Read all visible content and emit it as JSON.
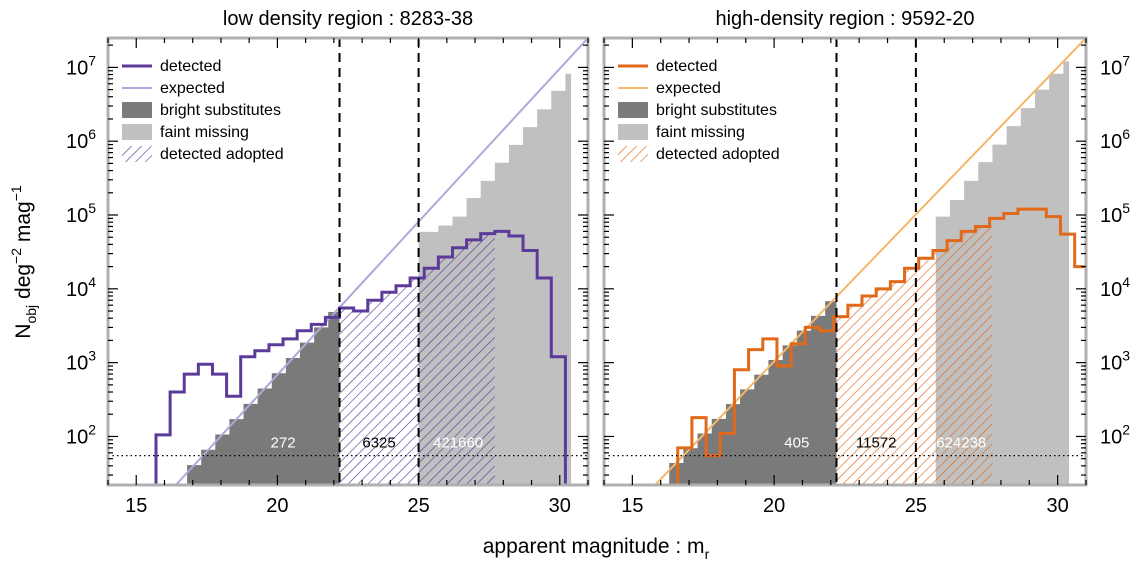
{
  "figure": {
    "ylabel": "N",
    "ylabel_sub": "obj",
    "ylabel_deg": "deg",
    "ylabel_deg_exp": "−2",
    "ylabel_mag": "mag",
    "ylabel_mag_exp": "−1",
    "xlabel": "apparent magnitude : m",
    "xlabel_sub": "r"
  },
  "legend": {
    "detected": "detected",
    "expected": "expected",
    "bright": "bright substitutes",
    "faint": "faint missing",
    "adopted": "detected adopted"
  },
  "colors": {
    "bright": "#7a7a7a",
    "faint": "#c0c0c0",
    "frame": "#b0b0b0"
  },
  "chart_data": [
    {
      "type": "histogram",
      "title": "low density region : 8283-38",
      "color": "#5b3a9a",
      "expected_color": "#b0a8d8",
      "xlim": [
        14,
        31
      ],
      "ylim": [
        22,
        25000000
      ],
      "yscale": "log",
      "xticks": [
        15,
        20,
        25,
        30
      ],
      "yticks": [
        {
          "exp": 2,
          "label": "10",
          "sup": "2"
        },
        {
          "exp": 3,
          "label": "10",
          "sup": "3"
        },
        {
          "exp": 4,
          "label": "10",
          "sup": "4"
        },
        {
          "exp": 5,
          "label": "10",
          "sup": "5"
        },
        {
          "exp": 6,
          "label": "10",
          "sup": "6"
        },
        {
          "exp": 7,
          "label": "10",
          "sup": "7"
        }
      ],
      "bin_width": 0.5,
      "detected_bins_start": 15.2,
      "detected": [
        20,
        105,
        400,
        700,
        950,
        700,
        350,
        1200,
        1450,
        1750,
        2100,
        2700,
        3300,
        4100,
        5500,
        5000,
        7000,
        9000,
        11000,
        14000,
        19000,
        27000,
        36000,
        46000,
        56000,
        60000,
        52000,
        33000,
        14000,
        1200,
        20
      ],
      "expected_line": [
        [
          16.4,
          22
        ],
        [
          31,
          25000000
        ]
      ],
      "bright_range": [
        16.8,
        22.2
      ],
      "faint_steps": [
        [
          25.0,
          59000
        ],
        [
          25.7,
          72000
        ],
        [
          26.2,
          95000
        ],
        [
          26.7,
          170000
        ],
        [
          27.2,
          290000
        ],
        [
          27.7,
          510000
        ],
        [
          28.2,
          890000
        ],
        [
          28.7,
          1550000
        ],
        [
          29.2,
          2700000
        ],
        [
          29.7,
          4800000
        ],
        [
          30.2,
          8200000
        ]
      ],
      "faint_end": 30.4,
      "adopted_range": [
        22.2,
        27.7
      ],
      "vlines": [
        22.2,
        25.0
      ],
      "hline": 55,
      "annotations": [
        {
          "x": 20.2,
          "label": "272",
          "color": "#ffffff"
        },
        {
          "x": 23.6,
          "label": "6325",
          "color": "#000000"
        },
        {
          "x": 26.4,
          "label": "421660",
          "color": "#ffffff"
        }
      ]
    },
    {
      "type": "histogram",
      "title": "high-density region : 9592-20",
      "color": "#e0691a",
      "expected_color": "#f5b669",
      "xlim": [
        14,
        31
      ],
      "ylim": [
        22,
        25000000
      ],
      "yscale": "log",
      "xticks": [
        15,
        20,
        25,
        30
      ],
      "yticks": [
        {
          "exp": 2,
          "label": "10",
          "sup": "2"
        },
        {
          "exp": 3,
          "label": "10",
          "sup": "3"
        },
        {
          "exp": 4,
          "label": "10",
          "sup": "4"
        },
        {
          "exp": 5,
          "label": "10",
          "sup": "5"
        },
        {
          "exp": 6,
          "label": "10",
          "sup": "6"
        },
        {
          "exp": 7,
          "label": "10",
          "sup": "7"
        }
      ],
      "bin_width": 0.5,
      "detected_bins_start": 16.6,
      "detected": [
        70,
        180,
        55,
        110,
        800,
        1500,
        2100,
        900,
        1800,
        3000,
        2700,
        4200,
        6000,
        8000,
        10000,
        12500,
        19000,
        26000,
        33000,
        45000,
        60000,
        70000,
        90000,
        105000,
        120000,
        120000,
        95000,
        55000,
        20000,
        2500
      ],
      "expected_line": [
        [
          15.8,
          22
        ],
        [
          31,
          25000000
        ]
      ],
      "bright_range": [
        16.3,
        22.2
      ],
      "faint_steps": [
        [
          25.7,
          95000
        ],
        [
          26.2,
          160000
        ],
        [
          26.7,
          290000
        ],
        [
          27.2,
          520000
        ],
        [
          27.7,
          900000
        ],
        [
          28.2,
          1600000
        ],
        [
          28.7,
          2800000
        ],
        [
          29.2,
          5000000
        ],
        [
          29.7,
          8200000
        ],
        [
          30.2,
          12000000
        ]
      ],
      "faint_end": 30.4,
      "adopted_range": [
        22.2,
        27.7
      ],
      "vlines": [
        22.2,
        25.0
      ],
      "hline": 55,
      "annotations": [
        {
          "x": 20.8,
          "label": "405",
          "color": "#ffffff"
        },
        {
          "x": 23.6,
          "label": "11572",
          "color": "#000000"
        },
        {
          "x": 26.6,
          "label": "624238",
          "color": "#ffffff"
        }
      ]
    }
  ]
}
